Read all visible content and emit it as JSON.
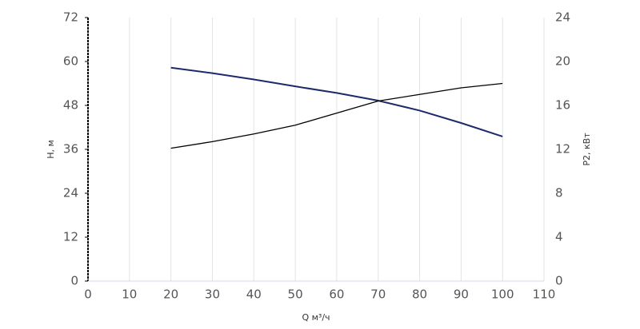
{
  "chart_data": {
    "type": "line",
    "x_label": "Q м³/ч",
    "y_label": "H, м",
    "y2_label": "P2, кВт",
    "x": [
      20,
      30,
      40,
      50,
      60,
      70,
      80,
      90,
      100
    ],
    "series": [
      {
        "name": "H",
        "color": "#1b2a6b",
        "values": [
          58.3,
          56.8,
          55.1,
          53.2,
          51.4,
          49.3,
          46.6,
          43.2,
          39.5
        ]
      },
      {
        "name": "P2",
        "color": "#000000",
        "axis": "y2",
        "values": [
          12.1,
          12.7,
          13.4,
          14.2,
          15.3,
          16.4,
          17.0,
          17.6,
          18.0
        ]
      }
    ],
    "xlim": [
      0,
      110
    ],
    "xticks": [
      0,
      10,
      20,
      30,
      40,
      50,
      60,
      70,
      80,
      90,
      100,
      110
    ],
    "ylim": [
      0,
      72
    ],
    "yticks": [
      0,
      12,
      24,
      36,
      48,
      60,
      72
    ],
    "y2lim": [
      0,
      24
    ],
    "y2ticks": [
      0,
      4,
      8,
      12,
      16,
      20,
      24
    ],
    "grid": true
  }
}
